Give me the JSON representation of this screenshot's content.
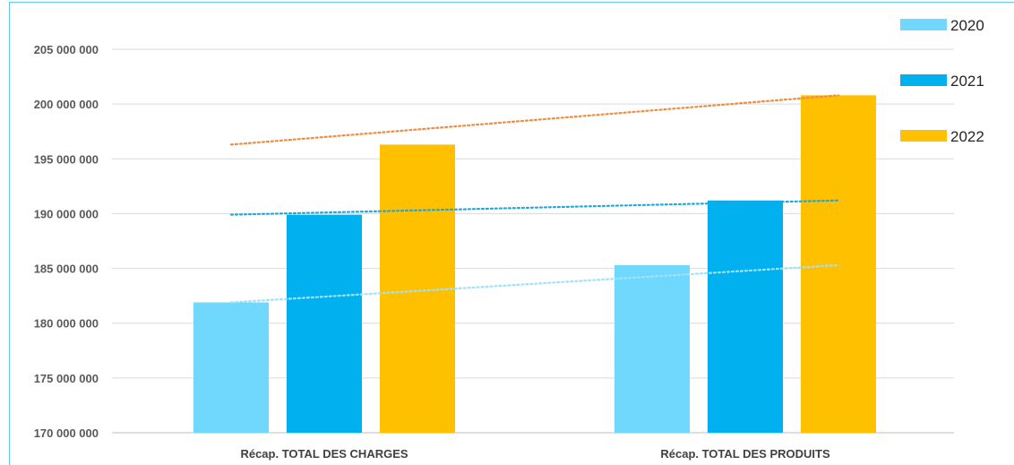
{
  "chart_data": {
    "type": "bar",
    "categories": [
      "Récap. TOTAL DES CHARGES",
      "Récap. TOTAL DES PRODUITS"
    ],
    "series": [
      {
        "name": "2020",
        "color": "#6fd8fc",
        "values": [
          181900000,
          185300000
        ]
      },
      {
        "name": "2021",
        "color": "#00b0ef",
        "values": [
          189900000,
          191200000
        ]
      },
      {
        "name": "2022",
        "color": "#ffc000",
        "values": [
          196300000,
          200800000
        ]
      }
    ],
    "ylim": [
      170000000,
      205000000
    ],
    "yticks": [
      170000000,
      175000000,
      180000000,
      185000000,
      190000000,
      195000000,
      200000000,
      205000000
    ],
    "ytick_labels": [
      "170 000 000",
      "175 000 000",
      "180 000 000",
      "185 000 000",
      "190 000 000",
      "195 000 000",
      "200 000 000",
      "205 000 000"
    ],
    "trendlines": [
      {
        "series": "2020",
        "style": "dotted",
        "color": "#9fe3fb"
      },
      {
        "series": "2021",
        "style": "dotted",
        "color": "#1ea8df"
      },
      {
        "series": "2022",
        "style": "dotted",
        "color": "#f08c40"
      }
    ],
    "grid": true,
    "legend": "top-right",
    "title": "",
    "xlabel": "",
    "ylabel": ""
  }
}
